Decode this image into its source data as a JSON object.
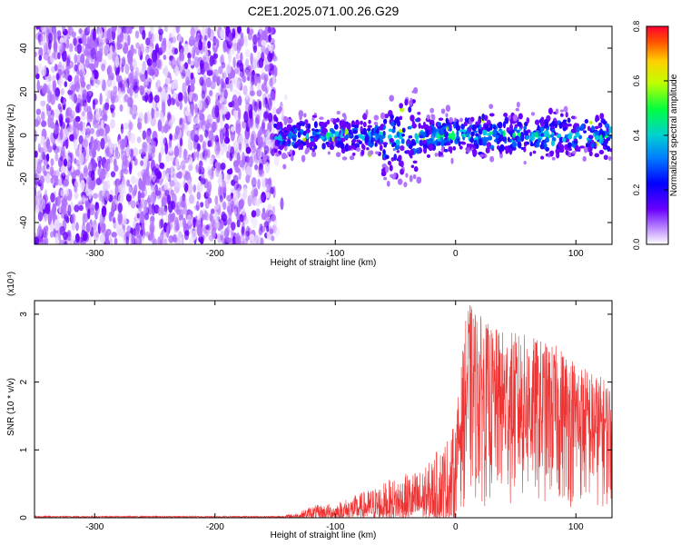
{
  "title": "C2E1.2025.071.00.26.G29",
  "chart_data": [
    {
      "type": "heatmap",
      "xlabel": "Height of straight line (km)",
      "ylabel": "Frequency (Hz)",
      "xlim": [
        -350,
        130
      ],
      "ylim": [
        -50,
        50
      ],
      "xticks": [
        "-300",
        "-200",
        "-100",
        "0",
        "100"
      ],
      "yticks": [
        "-40",
        "-20",
        "0",
        "20",
        "40"
      ],
      "colorbar": {
        "label": "Normalized spectral amplitude",
        "range": [
          0,
          0.8
        ],
        "ticks": [
          "0.0",
          "0.2",
          "0.4",
          "0.6",
          "0.8"
        ]
      },
      "description": "Noise-like purple speckle from -350 to -150 km across full band; band-limited signal (~±10 Hz) from -150 to 130 km with higher amplitudes near 0 Hz"
    },
    {
      "type": "line",
      "xlabel": "Height of straight line (km)",
      "ylabel": "SNR (10 * v/v)",
      "multiplier": "(x10⁴)",
      "xlim": [
        -350,
        130
      ],
      "ylim": [
        0,
        3.2
      ],
      "xticks": [
        "-300",
        "-200",
        "-100",
        "0",
        "100"
      ],
      "yticks": [
        "0",
        "1",
        "2",
        "3"
      ],
      "color": "#ee3333",
      "envelope": [
        {
          "x": -350,
          "y": 0.02
        },
        {
          "x": -150,
          "y": 0.02
        },
        {
          "x": -130,
          "y": 0.08
        },
        {
          "x": -120,
          "y": 0.18
        },
        {
          "x": -100,
          "y": 0.22
        },
        {
          "x": -75,
          "y": 0.4
        },
        {
          "x": -50,
          "y": 0.6
        },
        {
          "x": -25,
          "y": 0.75
        },
        {
          "x": 0,
          "y": 1.4
        },
        {
          "x": 10,
          "y": 3.2
        },
        {
          "x": 30,
          "y": 2.8
        },
        {
          "x": 60,
          "y": 2.7
        },
        {
          "x": 90,
          "y": 2.5
        },
        {
          "x": 110,
          "y": 2.2
        },
        {
          "x": 130,
          "y": 2.0
        }
      ]
    }
  ]
}
